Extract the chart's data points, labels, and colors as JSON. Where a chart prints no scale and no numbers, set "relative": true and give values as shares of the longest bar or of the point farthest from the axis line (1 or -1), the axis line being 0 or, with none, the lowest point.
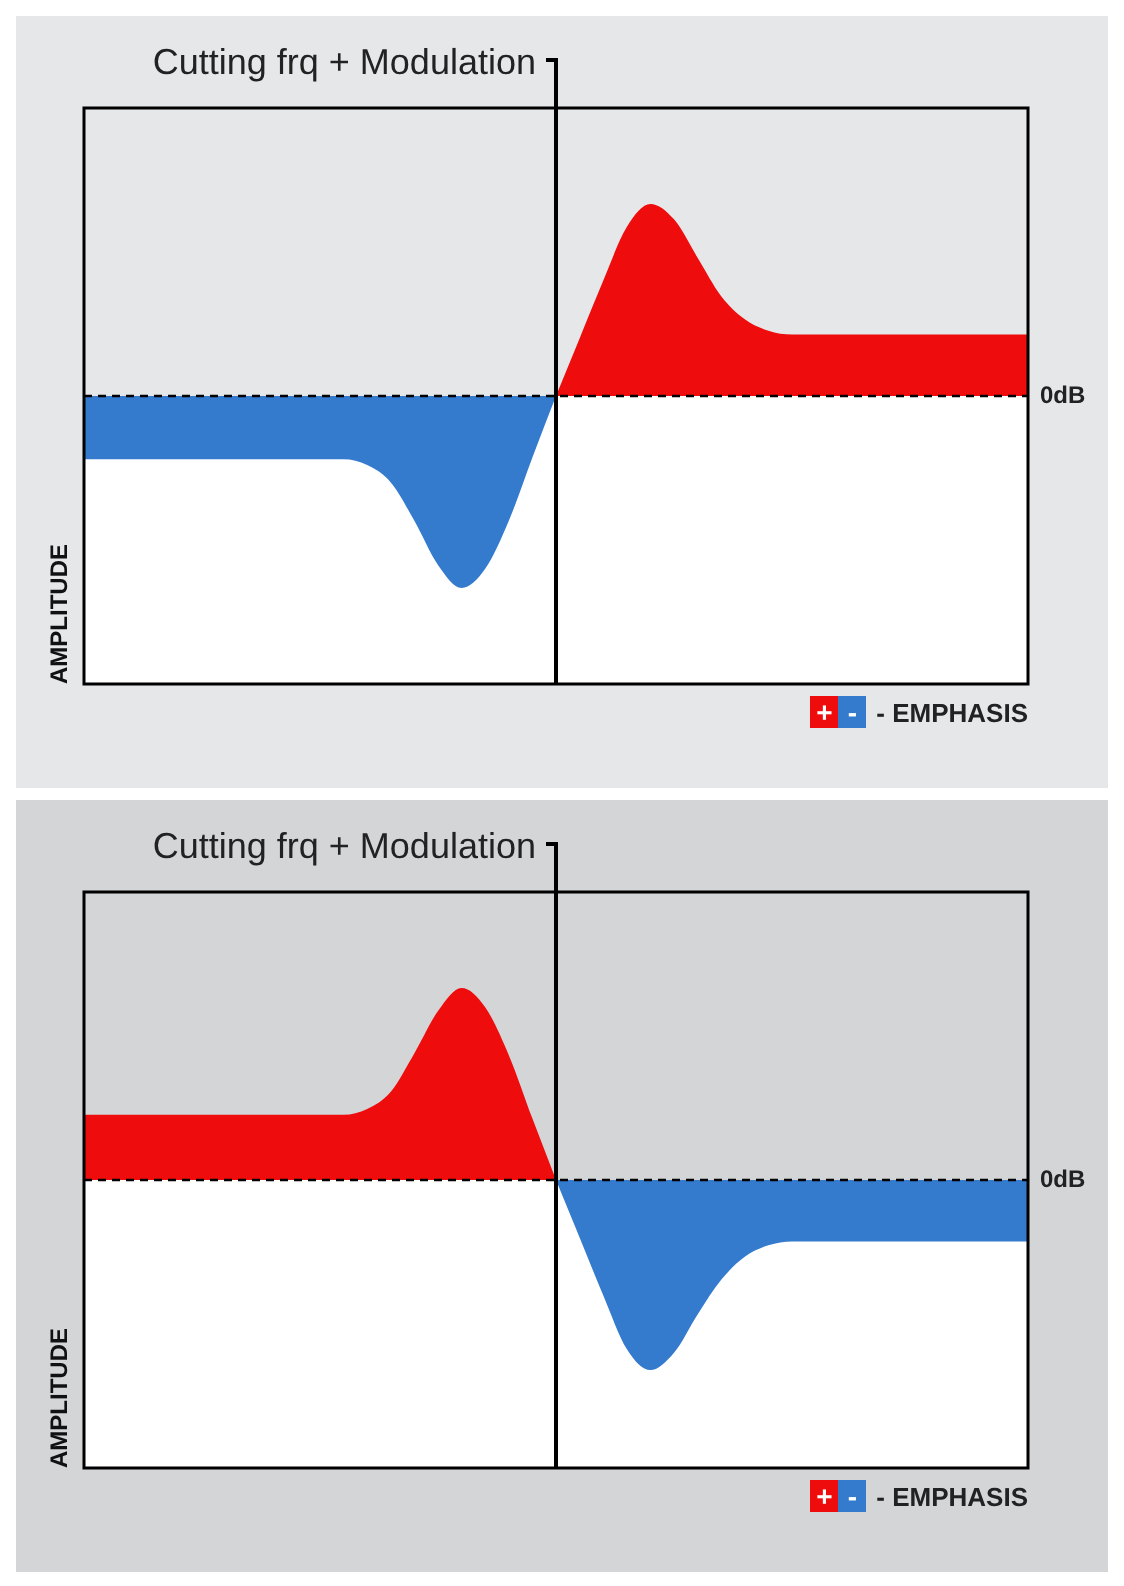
{
  "chart_data": [
    {
      "type": "area",
      "relative": true,
      "title": "Cutting frq + Modulation",
      "ylabel": "AMPLITUDE",
      "legend": "bottom right",
      "annotations": [
        "- EMPHASIS"
      ],
      "categories": [
        null,
        null,
        null,
        null,
        null,
        null,
        null,
        null,
        null,
        null,
        null,
        null,
        null,
        null,
        null,
        null,
        null,
        null,
        null,
        null,
        null,
        null,
        null,
        null,
        null,
        null,
        null,
        null,
        null,
        null,
        null,
        null,
        null,
        null,
        null,
        null,
        null,
        null,
        null,
        null,
        null
      ],
      "ref_lines": [
        {
          "axis": "y",
          "value": 0,
          "label": "0dB",
          "line_style": "dashed"
        }
      ],
      "series": [
        {
          "name": "+",
          "color": "#ee0c0c",
          "values": [
            null,
            null,
            null,
            null,
            null,
            null,
            null,
            null,
            null,
            null,
            null,
            null,
            null,
            null,
            null,
            null,
            null,
            null,
            null,
            null,
            0,
            0.3,
            0.6,
            0.88,
            1,
            0.92,
            0.72,
            0.52,
            0.4,
            0.34,
            0.32,
            0.32,
            0.32,
            0.32,
            0.32,
            0.32,
            0.32,
            0.32,
            0.32,
            0.32,
            0.32
          ]
        },
        {
          "name": "-",
          "color": "#347bcd",
          "values": [
            -0.33,
            -0.33,
            -0.33,
            -0.33,
            -0.33,
            -0.33,
            -0.33,
            -0.33,
            -0.33,
            -0.33,
            -0.33,
            -0.33,
            -0.36,
            -0.45,
            -0.65,
            -0.88,
            -1,
            -0.9,
            -0.65,
            -0.32,
            0,
            null,
            null,
            null,
            null,
            null,
            null,
            null,
            null,
            null,
            null,
            null,
            null,
            null,
            null,
            null,
            null,
            null,
            null,
            null,
            null
          ]
        }
      ]
    },
    {
      "type": "area",
      "relative": true,
      "title": "Cutting frq + Modulation",
      "ylabel": "AMPLITUDE",
      "legend": "bottom right",
      "annotations": [
        "- EMPHASIS"
      ],
      "categories": [
        null,
        null,
        null,
        null,
        null,
        null,
        null,
        null,
        null,
        null,
        null,
        null,
        null,
        null,
        null,
        null,
        null,
        null,
        null,
        null,
        null,
        null,
        null,
        null,
        null,
        null,
        null,
        null,
        null,
        null,
        null,
        null,
        null,
        null,
        null,
        null,
        null,
        null,
        null,
        null,
        null
      ],
      "ref_lines": [
        {
          "axis": "y",
          "value": 0,
          "label": "0dB",
          "line_style": "dashed"
        }
      ],
      "series": [
        {
          "name": "+",
          "color": "#ee0c0c",
          "values": [
            0.34,
            0.34,
            0.34,
            0.34,
            0.34,
            0.34,
            0.34,
            0.34,
            0.34,
            0.34,
            0.34,
            0.34,
            0.37,
            0.46,
            0.66,
            0.88,
            1,
            0.9,
            0.65,
            0.32,
            0,
            null,
            null,
            null,
            null,
            null,
            null,
            null,
            null,
            null,
            null,
            null,
            null,
            null,
            null,
            null,
            null,
            null,
            null,
            null,
            null
          ]
        },
        {
          "name": "-",
          "color": "#347bcd",
          "values": [
            null,
            null,
            null,
            null,
            null,
            null,
            null,
            null,
            null,
            null,
            null,
            null,
            null,
            null,
            null,
            null,
            null,
            null,
            null,
            null,
            0,
            -0.3,
            -0.6,
            -0.88,
            -0.99,
            -0.9,
            -0.7,
            -0.52,
            -0.4,
            -0.34,
            -0.32,
            -0.32,
            -0.32,
            -0.32,
            -0.32,
            -0.32,
            -0.32,
            -0.32,
            -0.32,
            -0.32,
            -0.32
          ]
        }
      ]
    }
  ]
}
